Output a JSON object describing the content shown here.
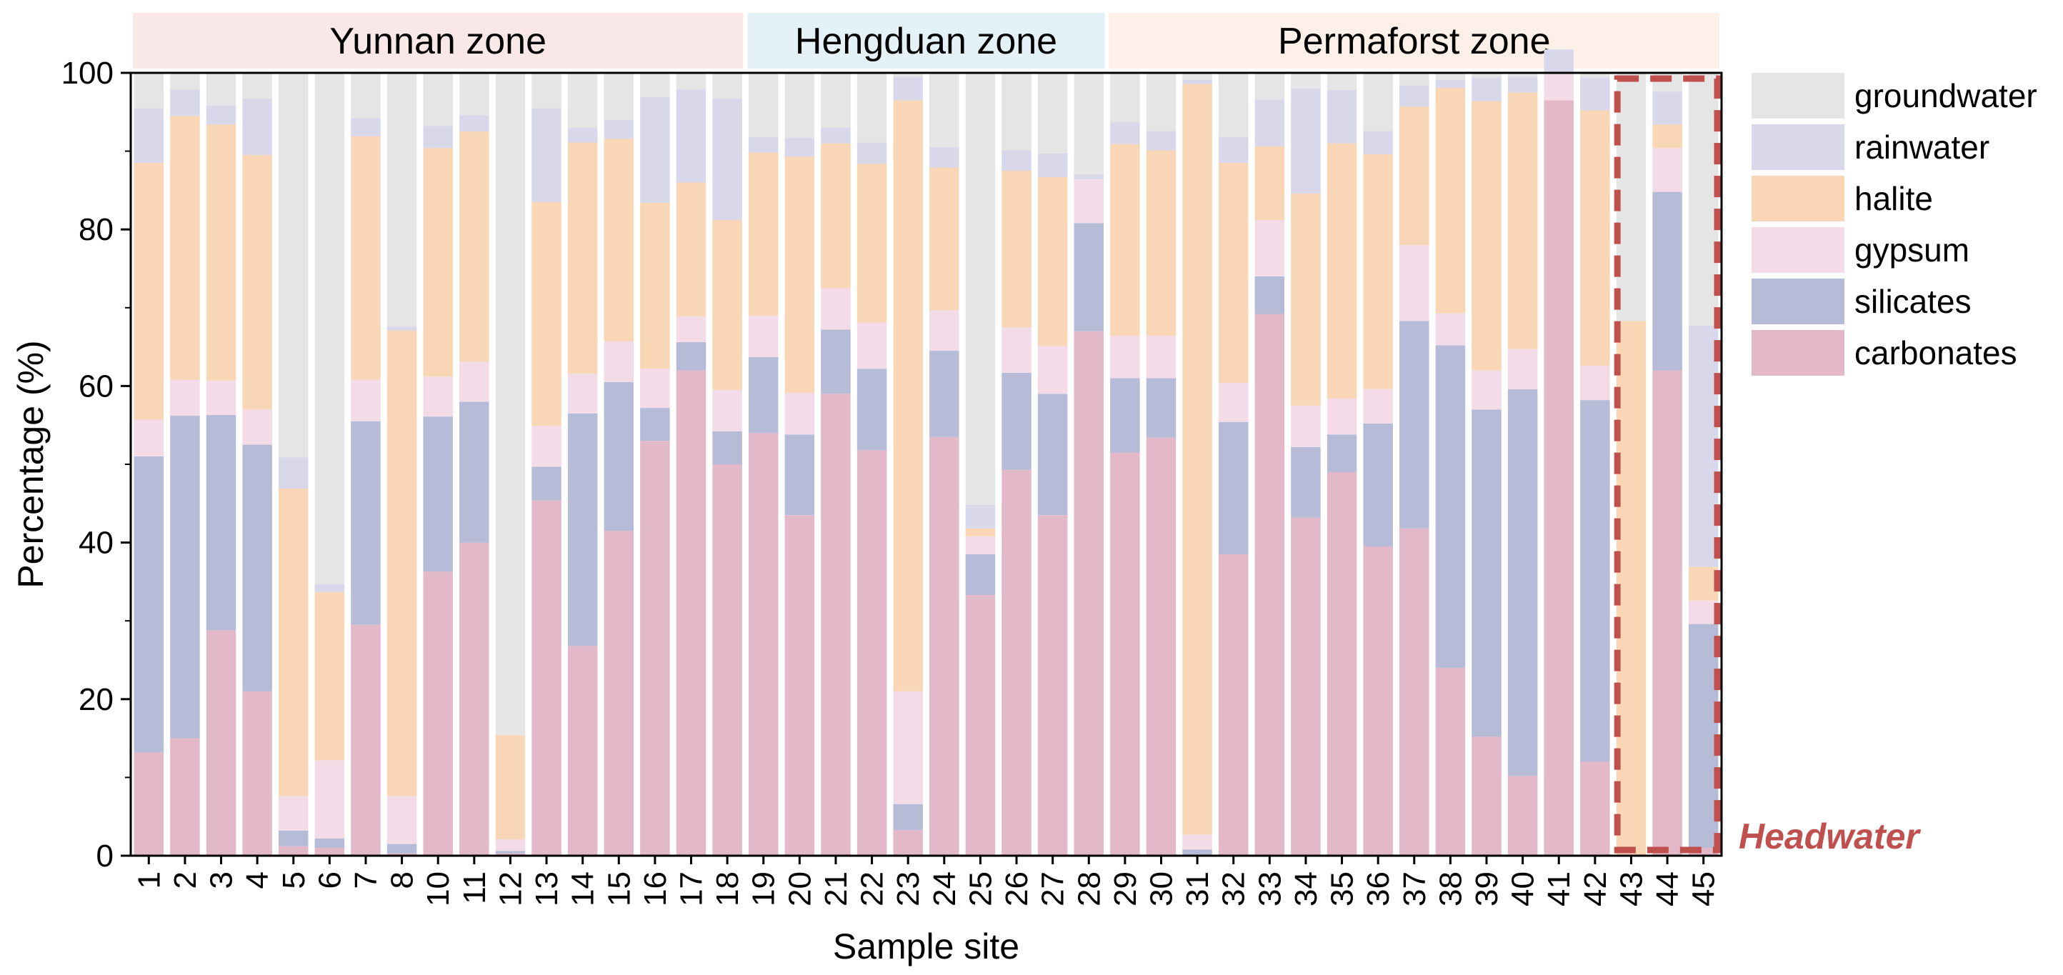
{
  "chart_data": {
    "type": "bar",
    "stacked": true,
    "xlabel": "Sample site",
    "ylabel": "Percentage (%)",
    "ylim": [
      0,
      100
    ],
    "yticks": [
      0,
      20,
      40,
      60,
      80,
      100
    ],
    "grid": false,
    "legend_position": "right",
    "categories": [
      "1",
      "2",
      "3",
      "4",
      "5",
      "6",
      "7",
      "8",
      "10",
      "11",
      "12",
      "13",
      "14",
      "15",
      "16",
      "17",
      "18",
      "19",
      "20",
      "21",
      "22",
      "23",
      "24",
      "25",
      "26",
      "27",
      "28",
      "29",
      "30",
      "31",
      "32",
      "33",
      "34",
      "35",
      "36",
      "37",
      "38",
      "39",
      "40",
      "41",
      "42",
      "43",
      "44",
      "45"
    ],
    "series": [
      {
        "name": "carbonates",
        "color": "#e3b8c8",
        "values": [
          13.2,
          15.0,
          28.8,
          21.0,
          1.2,
          1.0,
          29.5,
          0.3,
          36.3,
          40.0,
          0.3,
          45.4,
          26.8,
          41.5,
          53.0,
          62.0,
          50.0,
          54.0,
          43.5,
          59.0,
          51.8,
          3.3,
          53.5,
          33.3,
          49.3,
          43.5,
          67.0,
          51.5,
          53.4,
          0,
          38.5,
          69.2,
          43.2,
          49.0,
          39.5,
          41.8,
          24.0,
          15.2,
          10.2,
          96.5,
          12.0,
          0,
          62.0,
          1.0
        ]
      },
      {
        "name": "silicates",
        "color": "#b6bbd8",
        "values": [
          37.8,
          41.2,
          27.5,
          31.5,
          2.0,
          1.2,
          26.0,
          1.2,
          19.8,
          18.0,
          0.3,
          4.3,
          29.7,
          19.0,
          4.2,
          3.6,
          4.2,
          9.7,
          10.3,
          8.2,
          10.4,
          3.3,
          11.0,
          5.2,
          12.4,
          15.5,
          13.8,
          9.5,
          7.6,
          0.8,
          16.9,
          4.8,
          9.0,
          4.8,
          15.7,
          26.5,
          41.2,
          41.8,
          49.4,
          0,
          46.2,
          0,
          22.8,
          28.6
        ]
      },
      {
        "name": "gypsum",
        "color": "#f3dbe7",
        "values": [
          4.7,
          4.6,
          4.4,
          4.5,
          4.4,
          10.0,
          5.3,
          6.1,
          5.1,
          5.1,
          1.5,
          5.2,
          5.1,
          5.2,
          5.0,
          3.3,
          5.3,
          5.3,
          5.3,
          5.3,
          5.9,
          14.4,
          5.2,
          2.3,
          5.8,
          6.1,
          5.6,
          5.4,
          5.4,
          1.9,
          5.0,
          7.2,
          5.3,
          4.6,
          4.4,
          9.7,
          4.1,
          5.0,
          5.1,
          3.5,
          4.4,
          0,
          5.6,
          3.0
        ]
      },
      {
        "name": "halite",
        "color": "#f8d6b6",
        "values": [
          32.8,
          33.7,
          32.7,
          32.5,
          39.3,
          21.5,
          31.1,
          59.5,
          29.2,
          29.4,
          13.3,
          28.6,
          29.5,
          25.9,
          21.2,
          17.1,
          21.7,
          20.8,
          30.2,
          18.5,
          20.3,
          75.5,
          18.2,
          1.0,
          20.0,
          21.6,
          0,
          24.5,
          23.7,
          95.9,
          28.1,
          9.4,
          27.1,
          32.6,
          30.0,
          17.7,
          28.8,
          34.4,
          32.8,
          0,
          32.6,
          68.3,
          3.0,
          4.3
        ]
      },
      {
        "name": "rainwater",
        "color": "#d8d8ea",
        "values": [
          7.0,
          3.4,
          2.4,
          7.2,
          4.0,
          1.0,
          2.3,
          0.5,
          2.8,
          2.1,
          0,
          12.0,
          1.9,
          2.4,
          13.5,
          11.9,
          15.5,
          2.0,
          2.4,
          2.0,
          2.7,
          3.0,
          2.6,
          3.0,
          2.6,
          3.0,
          0.6,
          2.8,
          2.5,
          0.5,
          3.3,
          6.0,
          13.4,
          6.8,
          3.0,
          2.7,
          1.0,
          3.0,
          2.0,
          3.0,
          4.2,
          0,
          4.2,
          30.8
        ]
      },
      {
        "name": "groundwater",
        "color": "#e5e5e5",
        "values": [
          4.5,
          2.1,
          4.2,
          3.3,
          49.1,
          65.3,
          5.8,
          32.4,
          6.8,
          5.4,
          84.6,
          4.5,
          7.0,
          6.0,
          3.1,
          2.1,
          3.3,
          8.2,
          8.3,
          7.0,
          8.9,
          0.5,
          9.5,
          55.2,
          9.9,
          10.3,
          13.0,
          6.3,
          7.4,
          0.9,
          8.2,
          3.4,
          2.0,
          2.2,
          7.4,
          1.6,
          0.9,
          0.6,
          0.5,
          0,
          0.6,
          31.7,
          2.4,
          32.3
        ]
      }
    ],
    "zones": [
      {
        "label": "Yunnan zone",
        "from": "1",
        "to": "18",
        "color": "#f9e8e7"
      },
      {
        "label": "Hengduan zone",
        "from": "19",
        "to": "28",
        "color": "#e4f2f7"
      },
      {
        "label": "Permaforst zone",
        "from": "29",
        "to": "45",
        "color": "#fdf0e8"
      }
    ],
    "annotation": {
      "label": "Headwater",
      "from": "43",
      "to": "45",
      "color": "#c0504d"
    }
  }
}
